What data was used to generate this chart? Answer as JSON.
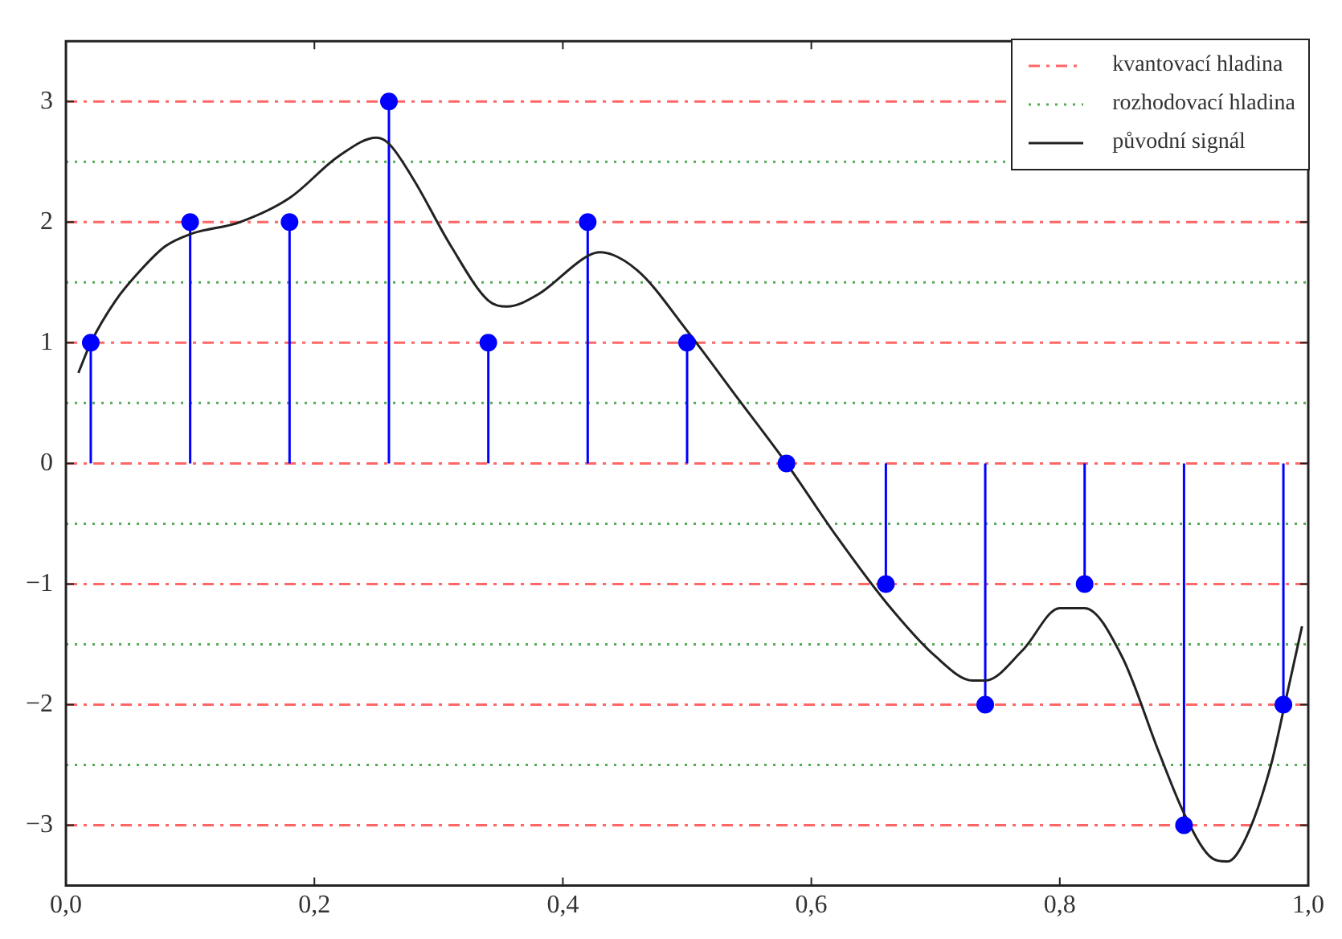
{
  "chart_data": {
    "type": "line",
    "xlim": [
      0,
      1
    ],
    "ylim": [
      -3.5,
      3.5
    ],
    "xticks": [
      {
        "value": 0,
        "label": "0,0"
      },
      {
        "value": 0.2,
        "label": "0,2"
      },
      {
        "value": 0.4,
        "label": "0,4"
      },
      {
        "value": 0.6,
        "label": "0,6"
      },
      {
        "value": 0.8,
        "label": "0,8"
      },
      {
        "value": 1,
        "label": "1,0"
      }
    ],
    "yticks": [
      {
        "value": -3,
        "label": "−3"
      },
      {
        "value": -2,
        "label": "−2"
      },
      {
        "value": -1,
        "label": "−1"
      },
      0,
      1,
      2,
      3
    ],
    "legend": "top right",
    "ref_lines": [
      {
        "axis": "y",
        "value": 3,
        "label": "kvantovací hladina",
        "color": "#ff6666",
        "line_style": "dashed"
      },
      {
        "axis": "y",
        "value": 2,
        "color": "#ff6666",
        "line_style": "dashed"
      },
      {
        "axis": "y",
        "value": 1,
        "color": "#ff6666",
        "line_style": "dashed"
      },
      {
        "axis": "y",
        "value": 0,
        "color": "#ff6666",
        "line_style": "dashed"
      },
      {
        "axis": "y",
        "value": -1,
        "color": "#ff6666",
        "line_style": "dashed"
      },
      {
        "axis": "y",
        "value": -2,
        "color": "#ff6666",
        "line_style": "dashed"
      },
      {
        "axis": "y",
        "value": -3,
        "color": "#ff6666",
        "line_style": "dashed"
      },
      {
        "axis": "y",
        "value": 2.5,
        "label": "rozhodovací hladina",
        "color": "#55aa55",
        "line_style": "dotted"
      },
      {
        "axis": "y",
        "value": 1.5,
        "color": "#55aa55",
        "line_style": "dotted"
      },
      {
        "axis": "y",
        "value": 0.5,
        "color": "#55aa55",
        "line_style": "dotted"
      },
      {
        "axis": "y",
        "value": -0.5,
        "color": "#55aa55",
        "line_style": "dotted"
      },
      {
        "axis": "y",
        "value": -1.5,
        "color": "#55aa55",
        "line_style": "dotted"
      },
      {
        "axis": "y",
        "value": -2.5,
        "color": "#55aa55",
        "line_style": "dotted"
      }
    ],
    "series": [
      {
        "name": "původní signál",
        "color": "#222222",
        "line_style": "solid",
        "marker": "none",
        "x": [
          0.01,
          0.02,
          0.04,
          0.06,
          0.08,
          0.1,
          0.14,
          0.18,
          0.22,
          0.25,
          0.26,
          0.28,
          0.31,
          0.34,
          0.355,
          0.38,
          0.42,
          0.43,
          0.46,
          0.5,
          0.54,
          0.58,
          0.62,
          0.66,
          0.7,
          0.73,
          0.74,
          0.77,
          0.8,
          0.82,
          0.85,
          0.88,
          0.9,
          0.92,
          0.935,
          0.95,
          0.97,
          0.98,
          0.995
        ],
        "values": [
          0.75,
          1.0,
          1.35,
          1.6,
          1.8,
          1.9,
          2.0,
          2.2,
          2.55,
          2.7,
          2.65,
          2.35,
          1.8,
          1.35,
          1.3,
          1.4,
          1.72,
          1.75,
          1.6,
          1.1,
          0.55,
          0.0,
          -0.6,
          -1.15,
          -1.6,
          -1.8,
          -1.8,
          -1.55,
          -1.2,
          -1.2,
          -1.6,
          -2.4,
          -2.9,
          -3.25,
          -3.3,
          -3.1,
          -2.5,
          -2.05,
          -1.35
        ]
      },
      {
        "type": "lollipop",
        "color": "#0000ff",
        "marker": "circle",
        "x": [
          0.02,
          0.1,
          0.18,
          0.26,
          0.34,
          0.42,
          0.5,
          0.58,
          0.66,
          0.74,
          0.82,
          0.9,
          0.98
        ],
        "values": [
          1,
          2,
          2,
          3,
          1,
          2,
          1,
          0,
          -1,
          -2,
          -1,
          -3,
          -2
        ]
      }
    ]
  }
}
